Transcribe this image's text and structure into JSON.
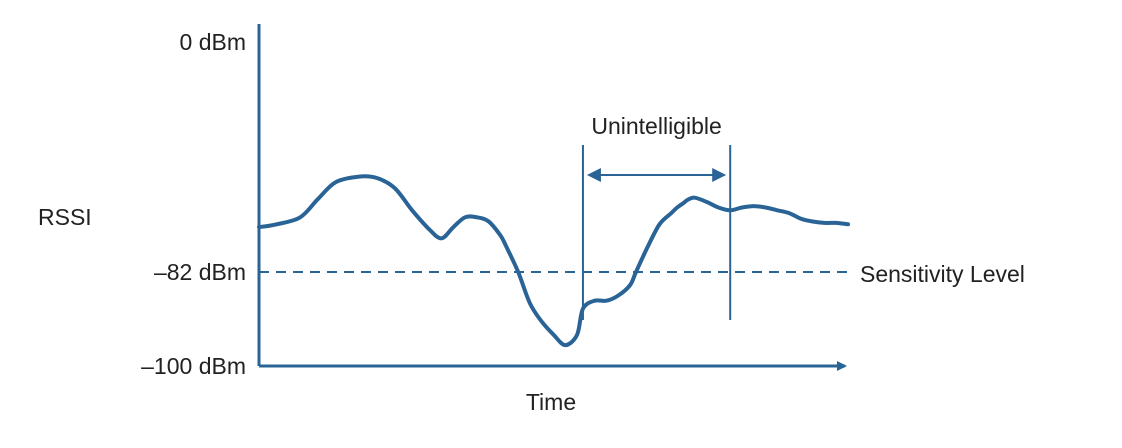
{
  "chart_data": {
    "type": "line",
    "title": "",
    "xlabel": "Time",
    "ylabel": "RSSI",
    "ylim": [
      -100,
      0
    ],
    "y_ticks": [
      {
        "value": 0,
        "label": "0 dBm"
      },
      {
        "value": -82,
        "label": "–82 dBm"
      },
      {
        "value": -100,
        "label": "–100 dBm"
      }
    ],
    "xlim": [
      0,
      100
    ],
    "series": [
      {
        "name": "RSSI signal",
        "x": [
          0,
          3,
          7,
          10,
          13,
          17,
          20,
          23,
          26,
          29,
          31,
          33,
          35,
          37,
          39,
          41,
          42,
          44,
          46,
          48,
          50,
          52,
          54,
          55,
          57,
          59,
          61,
          63,
          64,
          66,
          68,
          70,
          71,
          72,
          73,
          74,
          76,
          78,
          80,
          82,
          84,
          86,
          88,
          90,
          92,
          94,
          96,
          98,
          100
        ],
        "values": [
          -66,
          -65,
          -62.5,
          -56,
          -50,
          -48,
          -48.5,
          -52,
          -60,
          -67,
          -70,
          -66,
          -62.5,
          -62.5,
          -64,
          -69,
          -73,
          -82,
          -88,
          -91.5,
          -94,
          -96,
          -94,
          -89,
          -87.5,
          -87.5,
          -86.5,
          -84.5,
          -82,
          -73,
          -65,
          -61,
          -59,
          -57.5,
          -56,
          -55.5,
          -57,
          -59,
          -60,
          -59,
          -58.5,
          -59,
          -60,
          -61,
          -63,
          -64,
          -64.5,
          -64.5,
          -65
        ]
      }
    ],
    "reference_line": {
      "value": -82,
      "label": "Sensitivity Level",
      "style": "dashed"
    },
    "annotation": {
      "label": "Unintelligible",
      "x_start": 55,
      "x_end": 80,
      "type": "double-arrow span"
    },
    "color": "#2a6496"
  }
}
